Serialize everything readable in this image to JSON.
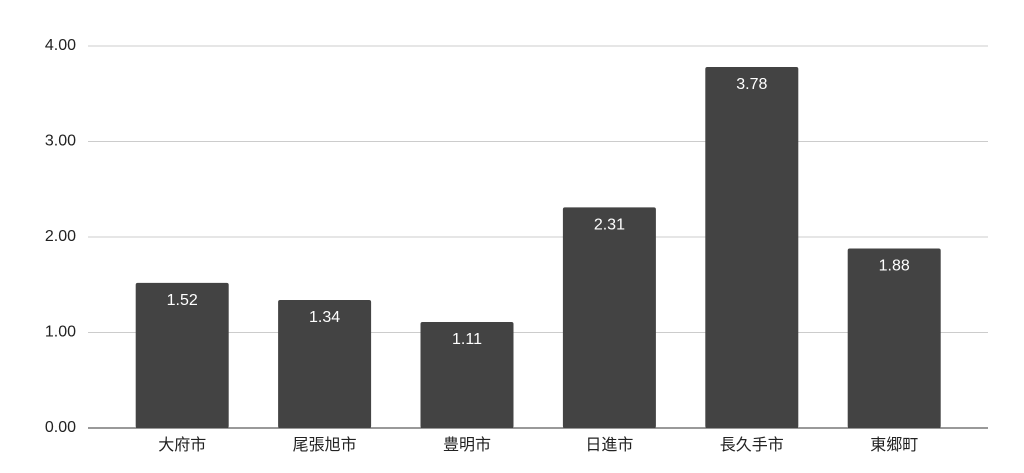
{
  "chart_data": {
    "type": "bar",
    "categories": [
      "大府市",
      "尾張旭市",
      "豊明市",
      "日進市",
      "長久手市",
      "東郷町"
    ],
    "values": [
      1.52,
      1.34,
      1.11,
      2.31,
      3.78,
      1.88
    ],
    "color": "#434343",
    "ylim": [
      0,
      4
    ],
    "yticks": [
      {
        "value": 0,
        "label": "0.00"
      },
      {
        "value": 1,
        "label": "1.00"
      },
      {
        "value": 2,
        "label": "2.00"
      },
      {
        "value": 3,
        "label": "3.00"
      },
      {
        "value": 4,
        "label": "4.00"
      }
    ],
    "grid": true
  }
}
